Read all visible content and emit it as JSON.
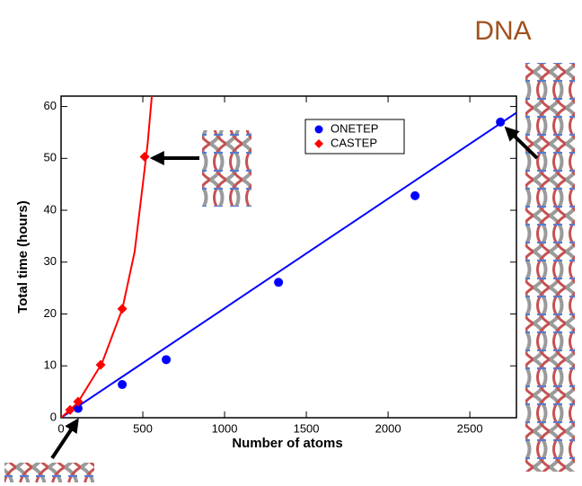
{
  "chart_data": {
    "type": "scatter",
    "title": "DNA",
    "x_label": "Number of atoms",
    "y_label": "Total time (hours)",
    "xlim": [
      0,
      2785
    ],
    "ylim": [
      0,
      62
    ],
    "xticks": [
      0,
      500,
      1000,
      1500,
      2000,
      2500
    ],
    "yticks": [
      0,
      10,
      20,
      30,
      40,
      50,
      60
    ],
    "legend": "upper center",
    "series": [
      {
        "name": "ONETEP",
        "color": "#0000ff",
        "marker": "circle",
        "x": [
          104,
          374,
          643,
          1330,
          2165,
          2687
        ],
        "values": [
          1.8,
          6.4,
          11.2,
          26.1,
          42.8,
          57.0
        ],
        "fit_x": [
          0,
          2785
        ],
        "fit_y": [
          0,
          58.8
        ]
      },
      {
        "name": "CASTEP",
        "color": "#ff0000",
        "marker": "diamond",
        "x": [
          55,
          104,
          242,
          374,
          511
        ],
        "values": [
          1.5,
          3.1,
          10.2,
          21.0,
          50.3
        ],
        "fit_x": [
          0,
          100,
          250,
          375,
          450,
          500,
          530,
          555
        ],
        "fit_y": [
          0,
          2.8,
          10.5,
          21.0,
          32.0,
          45.0,
          53.0,
          62.0
        ]
      }
    ]
  }
}
